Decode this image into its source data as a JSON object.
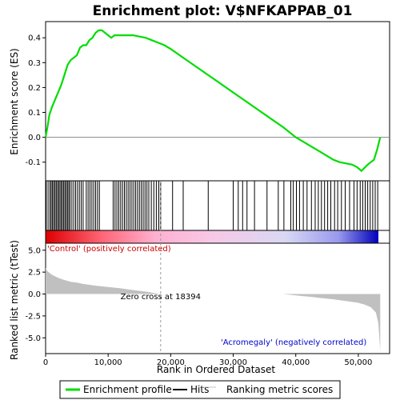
{
  "chart_data": [
    {
      "type": "line",
      "title": "Enrichment plot: V$NFKAPPAB_01",
      "ylabel": "Enrichment score (ES)",
      "xlim": [
        0,
        55000
      ],
      "ylim": [
        -0.175,
        0.465
      ],
      "yticks": [
        "0.0",
        "0.1",
        "0.2",
        "0.3",
        "0.4",
        "-0.1"
      ],
      "series": [
        {
          "name": "Enrichment profile",
          "color": "#00dd00",
          "x": [
            0,
            300,
            600,
            1000,
            1500,
            2000,
            2500,
            3000,
            3500,
            4000,
            4500,
            5000,
            5500,
            6000,
            6500,
            7000,
            7500,
            8000,
            8500,
            9000,
            9500,
            10000,
            10500,
            11000,
            11500,
            12000,
            13000,
            14000,
            15000,
            16000,
            17000,
            18000,
            19000,
            20000,
            22000,
            24000,
            26000,
            28000,
            30000,
            32000,
            34000,
            36000,
            38000,
            40000,
            42000,
            44000,
            45000,
            46000,
            47000,
            48000,
            49000,
            49800,
            50500,
            51500,
            52500,
            53000,
            53300,
            53500
          ],
          "y": [
            0.0,
            0.04,
            0.09,
            0.12,
            0.15,
            0.18,
            0.21,
            0.25,
            0.29,
            0.31,
            0.32,
            0.33,
            0.36,
            0.37,
            0.37,
            0.39,
            0.4,
            0.42,
            0.43,
            0.43,
            0.42,
            0.41,
            0.4,
            0.41,
            0.41,
            0.41,
            0.41,
            0.41,
            0.405,
            0.4,
            0.39,
            0.38,
            0.37,
            0.355,
            0.32,
            0.285,
            0.25,
            0.215,
            0.18,
            0.145,
            0.11,
            0.075,
            0.04,
            0.0,
            -0.03,
            -0.06,
            -0.075,
            -0.09,
            -0.1,
            -0.105,
            -0.11,
            -0.12,
            -0.135,
            -0.11,
            -0.09,
            -0.05,
            -0.02,
            0.0
          ]
        }
      ]
    },
    {
      "type": "scatter",
      "title": "",
      "xlim": [
        0,
        55000
      ],
      "series": [
        {
          "name": "Hits",
          "color": "#000000",
          "x": [
            100,
            400,
            700,
            900,
            1100,
            1300,
            1500,
            1700,
            1900,
            2100,
            2300,
            2500,
            2700,
            2900,
            3100,
            3300,
            3500,
            3700,
            3900,
            4200,
            4500,
            4800,
            5100,
            5400,
            5700,
            6000,
            6500,
            6800,
            7100,
            7400,
            7700,
            8000,
            8300,
            8600,
            10800,
            11100,
            11400,
            11700,
            12000,
            12300,
            12600,
            12900,
            13200,
            13500,
            13800,
            14100,
            14400,
            14700,
            15000,
            15300,
            15600,
            15900,
            16200,
            16500,
            16900,
            17300,
            17700,
            18100,
            18400,
            20300,
            22000,
            26000,
            30000,
            30800,
            31500,
            32200,
            33400,
            35400,
            37200,
            38100,
            39200,
            39600,
            40100,
            40600,
            41200,
            41800,
            42500,
            43100,
            43600,
            44100,
            44600,
            45100,
            45600,
            46200,
            46700,
            47300,
            47900,
            48600,
            49300,
            49800,
            50300,
            50700,
            51100,
            51500,
            51900,
            52300,
            52700,
            53100
          ]
        }
      ]
    },
    {
      "type": "area",
      "title": "",
      "xlabel": "Rank in Ordered Dataset",
      "ylabel": "Ranked list metric (tTest)",
      "xlim": [
        0,
        55000
      ],
      "ylim": [
        -6.8,
        5.8
      ],
      "xticks": [
        "0",
        "10,000",
        "20,000",
        "30,000",
        "40,000",
        "50,000"
      ],
      "yticks": [
        "5.0",
        "2.5",
        "0.0",
        "-2.5",
        "-5.0"
      ],
      "series": [
        {
          "name": "Ranking metric scores",
          "color": "#c0c0c0",
          "x": [
            0,
            300,
            1000,
            2000,
            3000,
            4000,
            5000,
            6000,
            8000,
            10000,
            12000,
            14000,
            16000,
            18394,
            22000,
            30000,
            38000,
            40000,
            42000,
            44000,
            46000,
            48000,
            50000,
            51000,
            52000,
            52800,
            53200,
            53500
          ],
          "y": [
            3.0,
            2.6,
            2.2,
            1.85,
            1.6,
            1.4,
            1.3,
            1.15,
            0.95,
            0.8,
            0.65,
            0.45,
            0.28,
            0.0,
            0.0,
            0.0,
            0.0,
            -0.15,
            -0.3,
            -0.45,
            -0.6,
            -0.8,
            -1.0,
            -1.2,
            -1.5,
            -2.1,
            -3.3,
            -6.5
          ]
        }
      ],
      "annotations": [
        {
          "text": "Zero cross at 18394",
          "x": 18394
        },
        {
          "text": "'Control' (positively correlated)",
          "color": "#cc0000"
        },
        {
          "text": "'Acromegaly' (negatively correlated)",
          "color": "#0000cc"
        }
      ]
    }
  ],
  "legend": {
    "items": [
      {
        "label": "Enrichment profile",
        "color": "#00dd00"
      },
      {
        "label": "Hits",
        "color": "#000000"
      },
      {
        "label": "Ranking metric scores",
        "color": "#c0c0c0"
      }
    ]
  }
}
